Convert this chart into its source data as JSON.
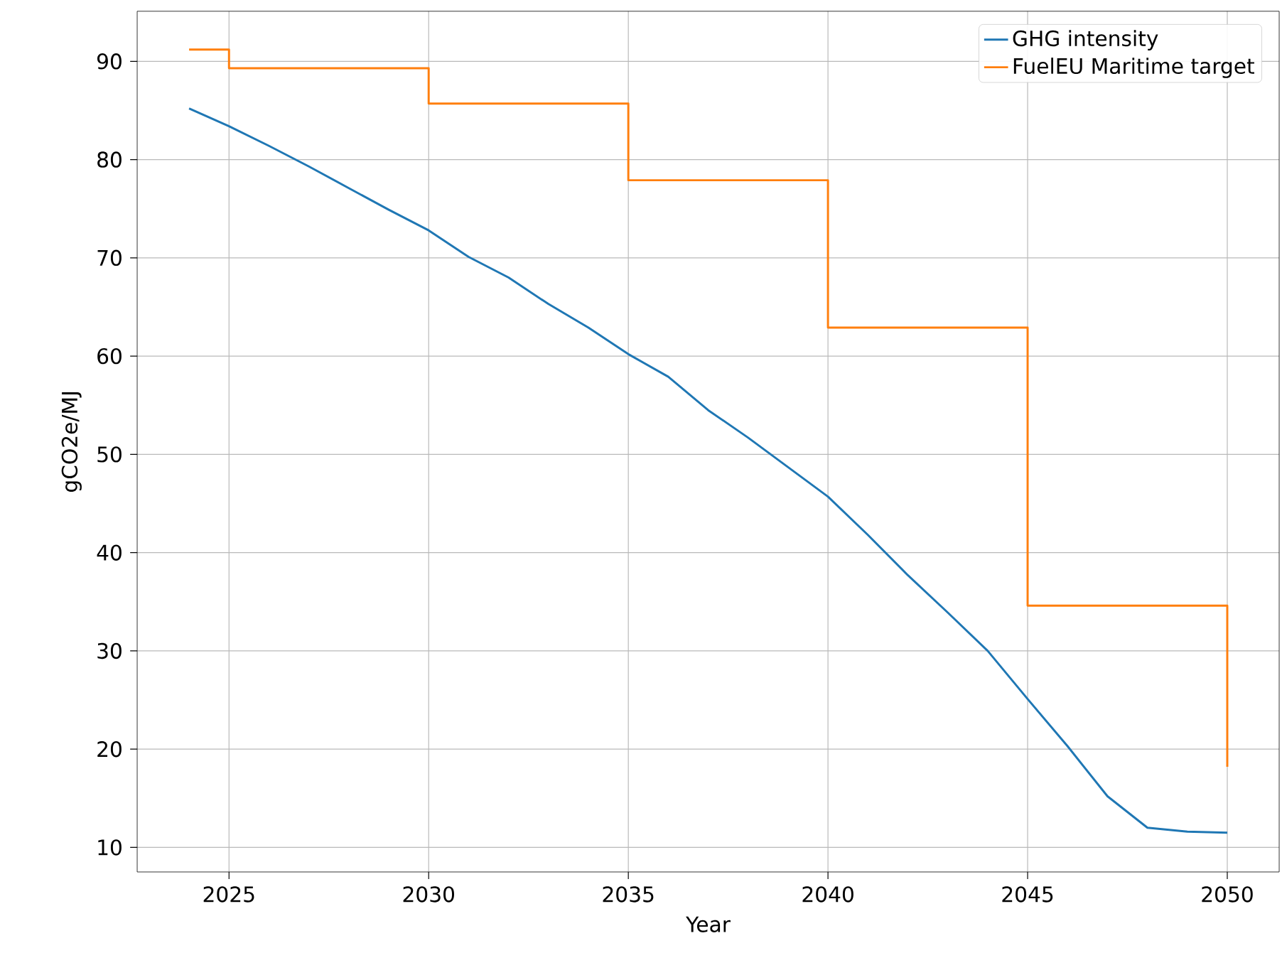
{
  "chart_data": {
    "type": "line",
    "xlabel": "Year",
    "ylabel": "gCO2e/MJ",
    "xlim": [
      2022.7,
      2051.3
    ],
    "ylim": [
      7.5,
      95.1
    ],
    "xticks": [
      2025,
      2030,
      2035,
      2040,
      2045,
      2050
    ],
    "yticks": [
      10,
      20,
      30,
      40,
      50,
      60,
      70,
      80,
      90
    ],
    "grid": true,
    "legend": "top right",
    "line_style": "solid",
    "series": [
      {
        "name": "GHG intensity",
        "color": "#1f77b4",
        "x": [
          2024,
          2025,
          2026,
          2027,
          2028,
          2029,
          2030,
          2031,
          2032,
          2033,
          2034,
          2035,
          2036,
          2037,
          2038,
          2039,
          2040,
          2041,
          2042,
          2043,
          2044,
          2045,
          2046,
          2047,
          2048,
          2049,
          2050
        ],
        "values": [
          85.2,
          83.4,
          81.4,
          79.3,
          77.1,
          74.9,
          72.8,
          70.1,
          68.0,
          65.3,
          62.9,
          60.2,
          57.9,
          54.5,
          51.7,
          48.7,
          45.7,
          41.8,
          37.7,
          33.9,
          30.0,
          25.1,
          20.3,
          15.2,
          12.0,
          11.6,
          11.5
        ]
      },
      {
        "name": "FuelEU Maritime target",
        "type": "step",
        "color": "#ff7f0e",
        "x": [
          2024,
          2025,
          2030,
          2035,
          2040,
          2045,
          2050
        ],
        "values": [
          91.2,
          89.3,
          85.7,
          77.9,
          62.9,
          34.6,
          18.2
        ]
      }
    ]
  }
}
